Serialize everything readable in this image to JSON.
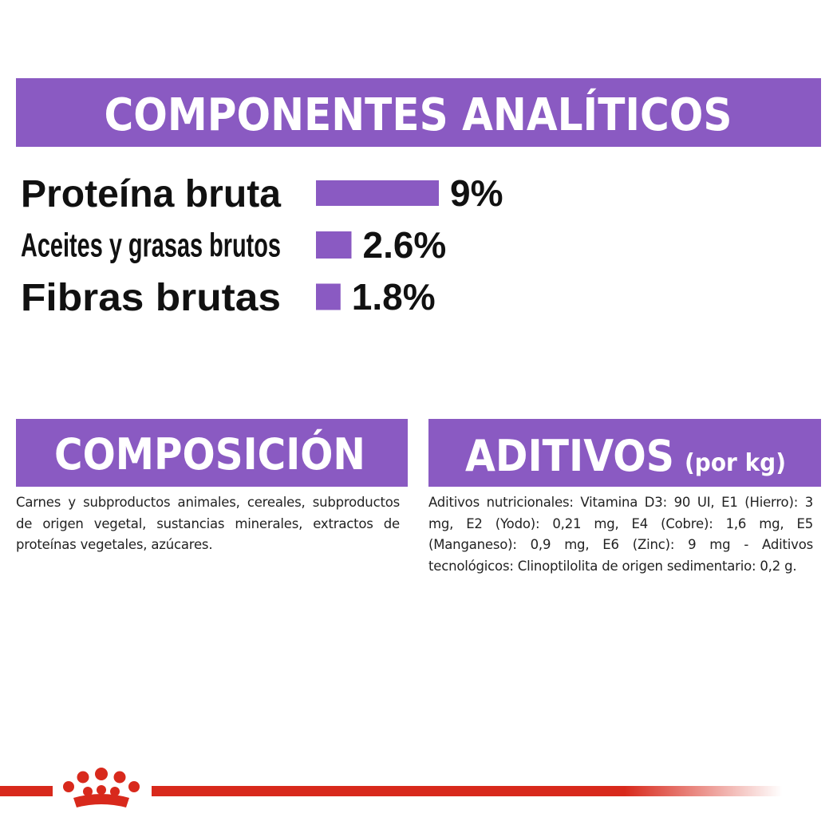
{
  "header": {
    "title": "COMPONENTES ANALÍTICOS"
  },
  "chart_data": {
    "type": "bar",
    "categories": [
      "Proteína bruta",
      "Aceites y grasas brutos",
      "Fibras brutas"
    ],
    "values": [
      9,
      2.6,
      1.8
    ],
    "value_labels": [
      "9%",
      "2.6%",
      "1.8%"
    ],
    "color": "#8a5ac2"
  },
  "composition": {
    "title": "COMPOSICIÓN",
    "text": "Carnes y subproductos animales, cereales, subproductos de origen vegetal, sustancias minerales, extractos de proteínas vegetales, azúcares."
  },
  "additives": {
    "title": "ADITIVOS",
    "subtitle": "(por kg)",
    "text": "Aditivos nutricionales: Vitamina D3: 90 UI, E1 (Hierro): 3 mg, E2 (Yodo): 0,21 mg, E4 (Cobre): 1,6 mg, E5 (Manganeso): 0,9 mg, E6 (Zinc): 9 mg - Aditivos tecnológicos: Clinoptilolita de origen sedimentario: 0,2 g."
  }
}
